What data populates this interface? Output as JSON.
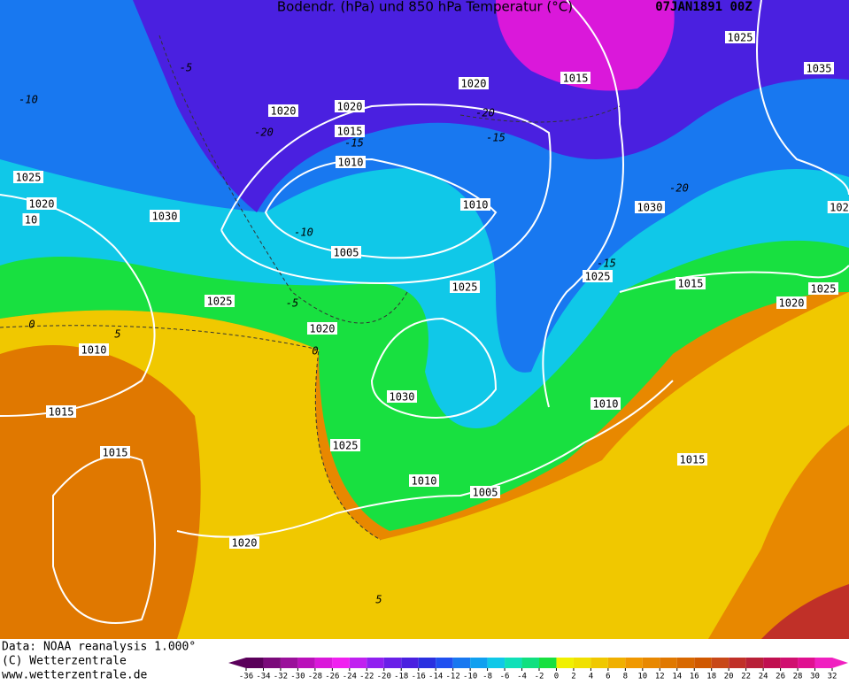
{
  "header": {
    "title": "Bodendr. (hPa) und 850 hPa Temperatur (°C)",
    "date": "07JAN1891 00Z"
  },
  "isobar_labels": [
    "1025",
    "1035",
    "1020",
    "1015",
    "1020",
    "1020",
    "1015",
    "1010",
    "1025",
    "1020",
    "1030",
    "1010",
    "1030",
    "1005",
    "1025",
    "1025",
    "1015",
    "1025",
    "1020",
    "1025",
    "1020",
    "1010",
    "1030",
    "1010",
    "1015",
    "1025",
    "1015",
    "1015",
    "1010",
    "1005",
    "1020",
    "10",
    "102"
  ],
  "temperature_labels": [
    "-10",
    "-5",
    "-20",
    "-15",
    "-20",
    "-15",
    "-10",
    "-20",
    "-15",
    "-5",
    "0",
    "0",
    "5",
    "5"
  ],
  "footer": {
    "source": "Data: NOAA reanalysis 1.000°",
    "copyright": "(C) Wetterzentrale",
    "url": "www.wetterzentrale.de"
  },
  "colorbar": {
    "ticks": [
      -36,
      -34,
      -32,
      -30,
      -28,
      -26,
      -24,
      -22,
      -20,
      -18,
      -16,
      -14,
      -12,
      -10,
      -8,
      -6,
      -4,
      -2,
      0,
      2,
      4,
      6,
      8,
      10,
      12,
      14,
      16,
      18,
      20,
      22,
      24,
      26,
      28,
      30,
      32
    ],
    "colors": [
      "#5a005a",
      "#7a0a7a",
      "#9a109a",
      "#ba10ba",
      "#da18da",
      "#f020f0",
      "#c020f0",
      "#9020f0",
      "#6a20e8",
      "#4a20e0",
      "#2a30e0",
      "#2050f0",
      "#1878f0",
      "#10a0f0",
      "#10c8e8",
      "#10e0b8",
      "#10e080",
      "#18e040",
      "#f0f000",
      "#f0e000",
      "#f0c800",
      "#f0b000",
      "#f09800",
      "#e88800",
      "#e07800",
      "#d86800",
      "#d05800",
      "#c84818",
      "#c03028",
      "#b82038",
      "#c01050",
      "#d01070",
      "#e01090",
      "#f020c0"
    ]
  }
}
